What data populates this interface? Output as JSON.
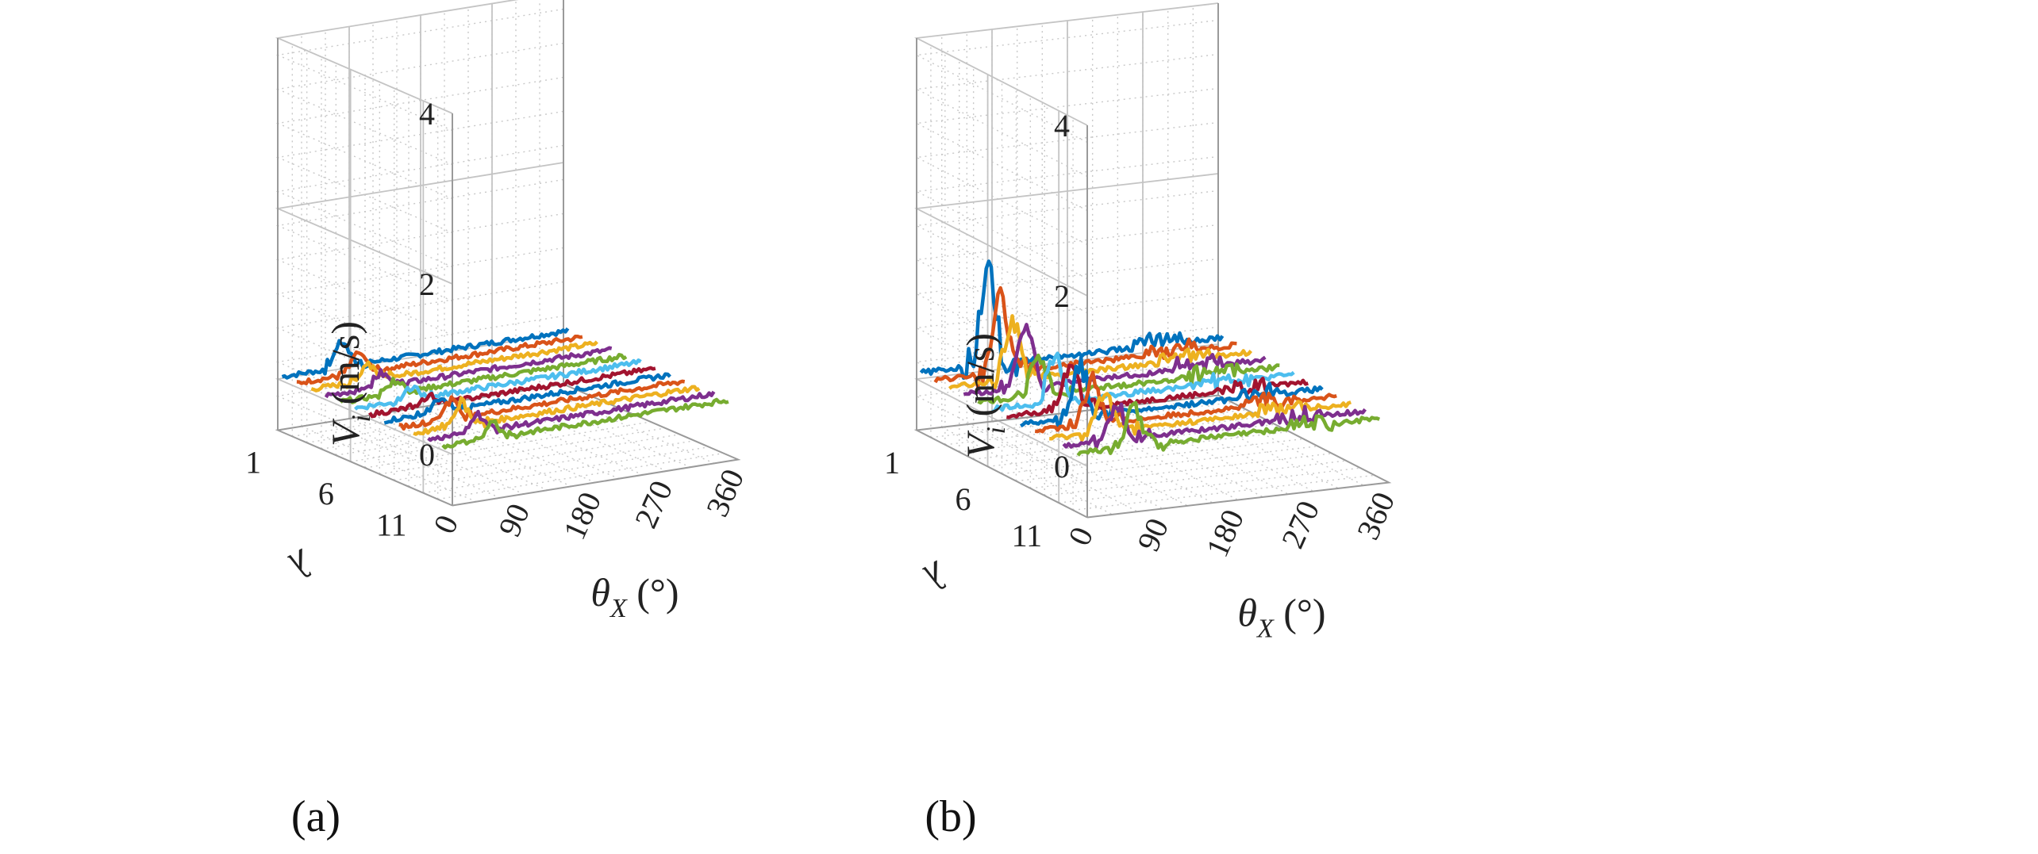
{
  "chart_data": [
    {
      "type": "line-3d",
      "panel_label": "(a)",
      "zlabel": "V_i (m/s)",
      "zlabel_main": "V",
      "zlabel_sub": "i",
      "zlabel_units": " (m/s)",
      "xlabel": "θ_X (°)",
      "xlabel_main": "θ",
      "xlabel_sub": "X",
      "xlabel_units": " (°)",
      "ylabel": "λ",
      "zticks": [
        "0",
        "2",
        "4"
      ],
      "xticks": [
        "0",
        "90",
        "180",
        "270",
        "360"
      ],
      "yticks": [
        "1",
        "6",
        "11"
      ],
      "zlim": [
        -0.6,
        4
      ],
      "xlim": [
        0,
        360
      ],
      "ylim": [
        1,
        13
      ],
      "series_count": 12,
      "base_value": 0.05,
      "peak_note": "Small peaks (~0.3 m/s) near θ_X ≈ 60–90°, remainder flat near 0",
      "peaks": [
        0.3,
        0.22,
        0.2,
        0.18,
        0.15,
        0.12,
        0.1,
        0.14,
        0.22,
        0.28,
        0.2,
        0.16
      ],
      "peak_theta": [
        75,
        78,
        72,
        70,
        68,
        72,
        75,
        70,
        65,
        60,
        62,
        64
      ],
      "colors": [
        "#0072BD",
        "#D95319",
        "#EDB120",
        "#7E2F8E",
        "#77AC30",
        "#4DBEEE",
        "#A2142F",
        "#0072BD",
        "#D95319",
        "#EDB120",
        "#7E2F8E",
        "#77AC30"
      ]
    },
    {
      "type": "line-3d",
      "panel_label": "(b)",
      "zlabel": "V_i (m/s)",
      "zlabel_main": "V",
      "zlabel_sub": "i",
      "zlabel_units": " (m/s)",
      "xlabel": "θ_X (°)",
      "xlabel_main": "θ",
      "xlabel_sub": "X",
      "xlabel_units": " (°)",
      "ylabel": "λ",
      "zticks": [
        "0",
        "2",
        "4"
      ],
      "xticks": [
        "0",
        "90",
        "180",
        "270",
        "360"
      ],
      "yticks": [
        "1",
        "6",
        "11"
      ],
      "zlim": [
        -0.6,
        4
      ],
      "xlim": [
        0,
        360
      ],
      "ylim": [
        1,
        13
      ],
      "series_count": 12,
      "base_value": 0.1,
      "peak_note": "Peaks up to ~1.1 m/s near θ_X ≈ 60–90°, small bumps near 260–300°",
      "peaks": [
        1.1,
        0.85,
        0.7,
        0.65,
        0.45,
        0.55,
        0.5,
        0.6,
        0.55,
        0.45,
        0.4,
        0.5
      ],
      "peak_theta": [
        80,
        78,
        76,
        74,
        72,
        74,
        76,
        70,
        68,
        66,
        64,
        66
      ],
      "colors": [
        "#0072BD",
        "#D95319",
        "#EDB120",
        "#7E2F8E",
        "#77AC30",
        "#4DBEEE",
        "#A2142F",
        "#0072BD",
        "#D95319",
        "#EDB120",
        "#7E2F8E",
        "#77AC30"
      ]
    }
  ]
}
